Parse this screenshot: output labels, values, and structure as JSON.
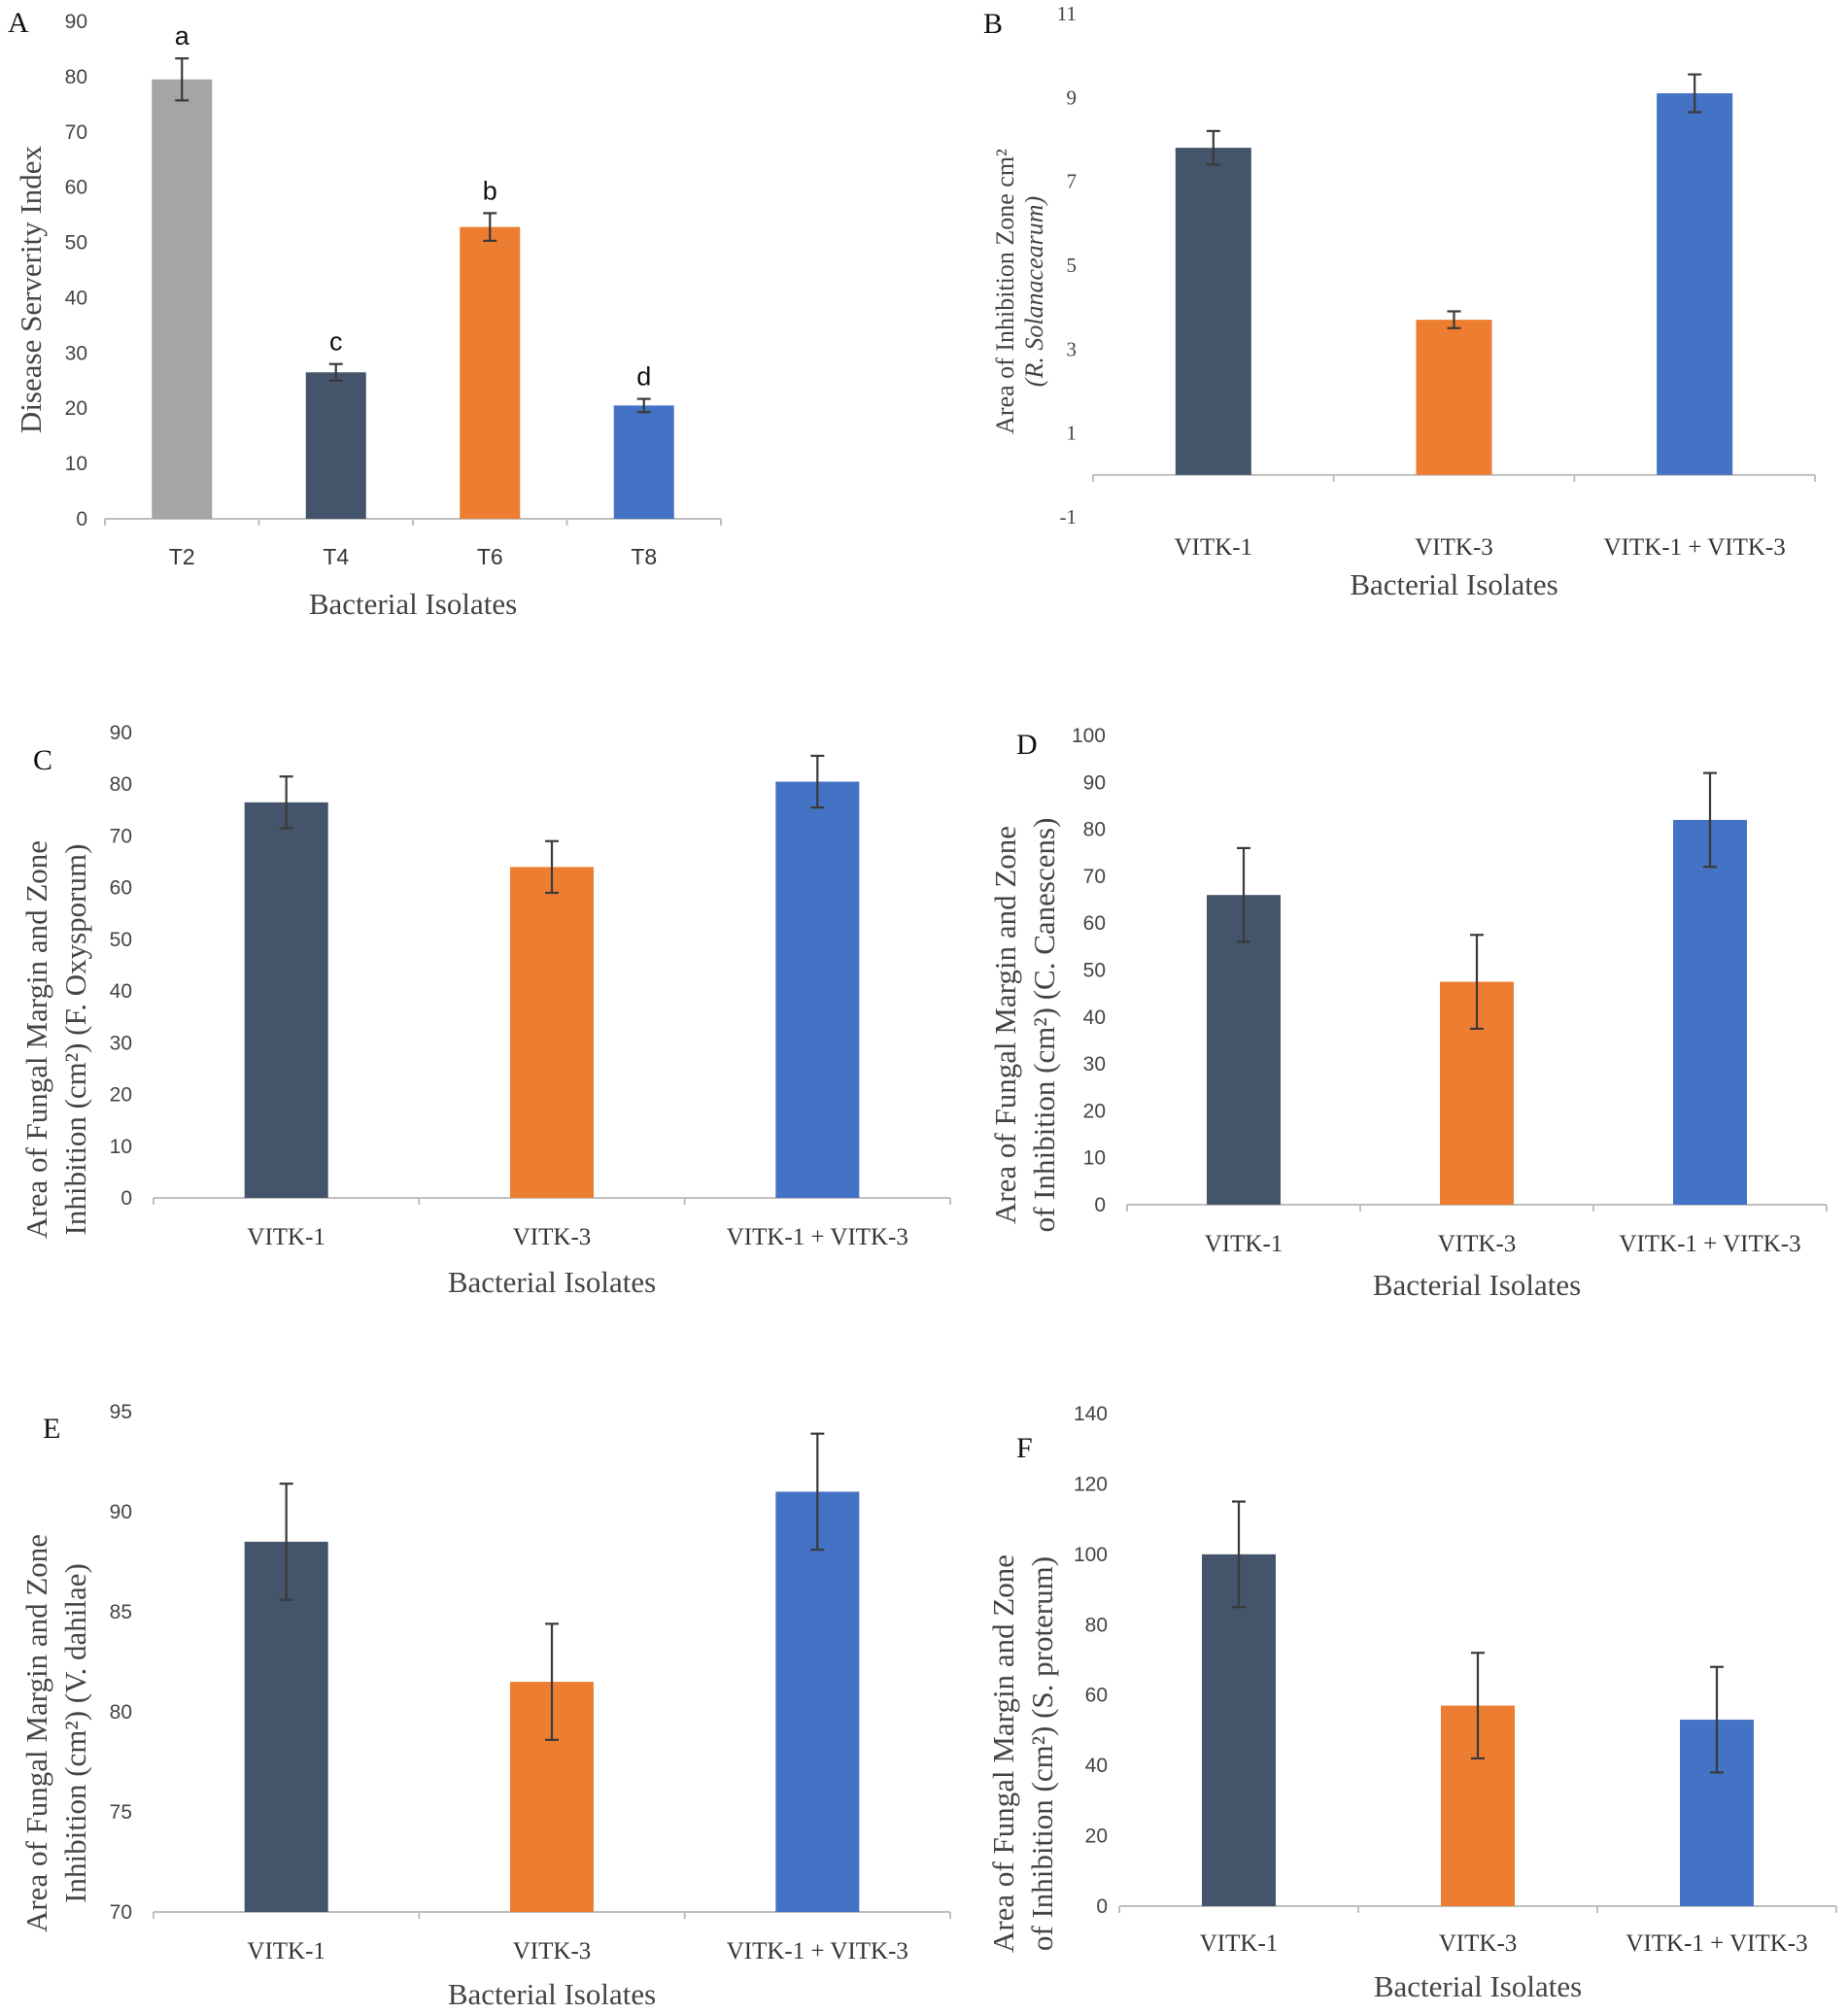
{
  "colors": {
    "gray": "#a5a5a5",
    "navy": "#44546a",
    "orange": "#ed7d31",
    "blue": "#4472c4",
    "axis": "#bfbfbf"
  },
  "chart_data": [
    {
      "id": "A",
      "type": "bar",
      "panel_label": "A",
      "categories": [
        "T2",
        "T4",
        "T6",
        "T8"
      ],
      "values": [
        79.5,
        26.5,
        52.8,
        20.5
      ],
      "errors": [
        3.8,
        1.5,
        2.5,
        1.2
      ],
      "bar_colors": [
        "gray",
        "navy",
        "orange",
        "blue"
      ],
      "significance": [
        "a",
        "c",
        "b",
        "d"
      ],
      "xlabel": "Bacterial Isolates",
      "ylabel": "Disease Serverity Index",
      "ylabel_sub": "",
      "ylim": [
        0,
        90
      ],
      "yticks": [
        0,
        10,
        20,
        30,
        40,
        50,
        60,
        70,
        80,
        90
      ],
      "ytick_labels": [
        "0",
        "10",
        "20",
        "30",
        "40",
        "50",
        "60",
        "70",
        "80",
        "90"
      ]
    },
    {
      "id": "B",
      "type": "bar",
      "panel_label": "B",
      "categories": [
        "VITK-1",
        "VITK-3",
        "VITK-1 + VITK-3"
      ],
      "values": [
        7.8,
        3.7,
        9.1
      ],
      "errors": [
        0.4,
        0.2,
        0.45
      ],
      "bar_colors": [
        "navy",
        "orange",
        "blue"
      ],
      "significance": [],
      "xlabel": "Bacterial Isolates",
      "ylabel": "Area of Inhibition Zone cm²",
      "ylabel_sub": "(R. Solanacearum)",
      "ylim": [
        -1,
        11
      ],
      "yticks": [
        -1,
        1,
        3,
        5,
        7,
        9,
        11
      ],
      "ytick_labels": [
        "-1",
        "1",
        "3",
        "5",
        "7",
        "9",
        "11"
      ]
    },
    {
      "id": "C",
      "type": "bar",
      "panel_label": "C",
      "categories": [
        "VITK-1",
        "VITK-3",
        "VITK-1 + VITK-3"
      ],
      "values": [
        76.5,
        64,
        80.5
      ],
      "errors": [
        5,
        5,
        5
      ],
      "bar_colors": [
        "navy",
        "orange",
        "blue"
      ],
      "significance": [],
      "xlabel": "Bacterial Isolates",
      "ylabel": "Area of Fungal Margin and Zone",
      "ylabel_sub": "Inhibition (cm²) (F. Oxysporum)",
      "ylim": [
        0,
        90
      ],
      "yticks": [
        0,
        10,
        20,
        30,
        40,
        50,
        60,
        70,
        80,
        90
      ],
      "ytick_labels": [
        "0",
        "10",
        "20",
        "30",
        "40",
        "50",
        "60",
        "70",
        "80",
        "90"
      ]
    },
    {
      "id": "D",
      "type": "bar",
      "panel_label": "D",
      "categories": [
        "VITK-1",
        "VITK-3",
        "VITK-1 + VITK-3"
      ],
      "values": [
        66,
        47.5,
        82
      ],
      "errors": [
        10,
        10,
        10
      ],
      "bar_colors": [
        "navy",
        "orange",
        "blue"
      ],
      "significance": [],
      "xlabel": "Bacterial Isolates",
      "ylabel": "Area of Fungal Margin and Zone",
      "ylabel_sub": "of Inhibition (cm²) (C. Canescens)",
      "ylim": [
        0,
        100
      ],
      "yticks": [
        0,
        10,
        20,
        30,
        40,
        50,
        60,
        70,
        80,
        90,
        100
      ],
      "ytick_labels": [
        "0",
        "10",
        "20",
        "30",
        "40",
        "50",
        "60",
        "70",
        "80",
        "90",
        "100"
      ]
    },
    {
      "id": "E",
      "type": "bar",
      "panel_label": "E",
      "categories": [
        "VITK-1",
        "VITK-3",
        "VITK-1 + VITK-3"
      ],
      "values": [
        88.5,
        81.5,
        91
      ],
      "errors": [
        2.9,
        2.9,
        2.9
      ],
      "bar_colors": [
        "navy",
        "orange",
        "blue"
      ],
      "significance": [],
      "xlabel": "Bacterial Isolates",
      "ylabel": "Area of Fungal Margin and Zone",
      "ylabel_sub": "Inhibition (cm²) (V. dahilae)",
      "ylim": [
        70,
        95
      ],
      "yticks": [
        70,
        75,
        80,
        85,
        90,
        95
      ],
      "ytick_labels": [
        "70",
        "75",
        "80",
        "85",
        "90",
        "95"
      ]
    },
    {
      "id": "F",
      "type": "bar",
      "panel_label": "F",
      "categories": [
        "VITK-1",
        "VITK-3",
        "VITK-1 + VITK-3"
      ],
      "values": [
        100,
        57,
        53
      ],
      "errors": [
        15,
        15,
        15
      ],
      "bar_colors": [
        "navy",
        "orange",
        "blue"
      ],
      "significance": [],
      "xlabel": "Bacterial Isolates",
      "ylabel": "Area of Fungal Margin and Zone",
      "ylabel_sub": "of Inhibition (cm²) (S. proterum)",
      "ylim": [
        0,
        140
      ],
      "yticks": [
        0,
        20,
        40,
        60,
        80,
        100,
        120,
        140
      ],
      "ytick_labels": [
        "0",
        "20",
        "40",
        "60",
        "80",
        "100",
        "120",
        "140"
      ]
    }
  ]
}
